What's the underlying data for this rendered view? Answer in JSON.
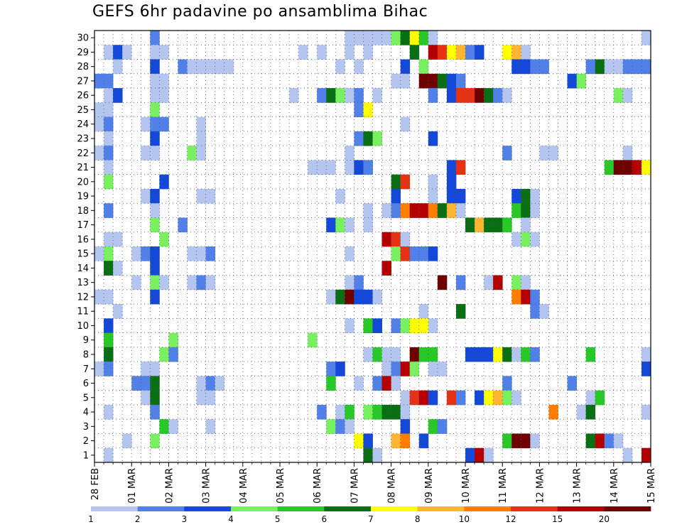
{
  "chart_data": {
    "type": "heatmap",
    "title": "GEFS 6hr padavine po ansamblima Bihac",
    "xlabel": "",
    "ylabel": "",
    "x_tick_labels": [
      "28 FEB",
      "01 MAR",
      "02 MAR",
      "03 MAR",
      "04 MAR",
      "05 MAR",
      "06 MAR",
      "07 MAR",
      "08 MAR",
      "09 MAR",
      "10 MAR",
      "11 MAR",
      "12 MAR",
      "13 MAR",
      "14 MAR",
      "15 MAR"
    ],
    "y_tick_labels": [
      "1",
      "2",
      "3",
      "4",
      "5",
      "6",
      "7",
      "8",
      "9",
      "10",
      "11",
      "12",
      "13",
      "14",
      "15",
      "16",
      "17",
      "18",
      "19",
      "20",
      "21",
      "22",
      "23",
      "24",
      "25",
      "26",
      "27",
      "28",
      "29",
      "30"
    ],
    "steps_per_day": 4,
    "n_steps": 60,
    "colorbar": {
      "levels": [
        "1",
        "2",
        "3",
        "4",
        "5",
        "6",
        "7",
        "8",
        "10",
        "12",
        "15",
        "20"
      ],
      "colors": [
        "#b4c6f0",
        "#5080e8",
        "#1448d8",
        "#78f060",
        "#28c828",
        "#0a6e14",
        "#ffff00",
        "#ffb432",
        "#ff7d00",
        "#e63214",
        "#b40000",
        "#6e0000"
      ]
    },
    "grid": true,
    "cells": [
      [
        30,
        6,
        2
      ],
      [
        30,
        27,
        1
      ],
      [
        30,
        28,
        1
      ],
      [
        30,
        29,
        1
      ],
      [
        30,
        30,
        1
      ],
      [
        30,
        31,
        1
      ],
      [
        30,
        32,
        4
      ],
      [
        30,
        33,
        6
      ],
      [
        30,
        34,
        7
      ],
      [
        30,
        35,
        5
      ],
      [
        30,
        36,
        1
      ],
      [
        30,
        59,
        1
      ],
      [
        29,
        1,
        1
      ],
      [
        29,
        2,
        3
      ],
      [
        29,
        3,
        1
      ],
      [
        29,
        6,
        1
      ],
      [
        29,
        7,
        1
      ],
      [
        29,
        22,
        1
      ],
      [
        29,
        24,
        1
      ],
      [
        29,
        27,
        1
      ],
      [
        29,
        29,
        1
      ],
      [
        29,
        34,
        6
      ],
      [
        29,
        36,
        11
      ],
      [
        29,
        37,
        10
      ],
      [
        29,
        38,
        7
      ],
      [
        29,
        39,
        8
      ],
      [
        29,
        40,
        2
      ],
      [
        29,
        41,
        3
      ],
      [
        29,
        44,
        7
      ],
      [
        29,
        45,
        8
      ],
      [
        29,
        46,
        1
      ],
      [
        28,
        2,
        1
      ],
      [
        28,
        6,
        3
      ],
      [
        28,
        9,
        2
      ],
      [
        28,
        10,
        1
      ],
      [
        28,
        11,
        1
      ],
      [
        28,
        12,
        1
      ],
      [
        28,
        13,
        1
      ],
      [
        28,
        14,
        1
      ],
      [
        28,
        26,
        1
      ],
      [
        28,
        28,
        1
      ],
      [
        28,
        33,
        3
      ],
      [
        28,
        35,
        4
      ],
      [
        28,
        45,
        3
      ],
      [
        28,
        46,
        3
      ],
      [
        28,
        47,
        2
      ],
      [
        28,
        48,
        2
      ],
      [
        28,
        53,
        2
      ],
      [
        28,
        54,
        6
      ],
      [
        28,
        55,
        1
      ],
      [
        28,
        56,
        1
      ],
      [
        28,
        57,
        2
      ],
      [
        28,
        58,
        2
      ],
      [
        28,
        59,
        2
      ],
      [
        27,
        0,
        2
      ],
      [
        27,
        1,
        2
      ],
      [
        27,
        6,
        1
      ],
      [
        27,
        7,
        1
      ],
      [
        27,
        32,
        1
      ],
      [
        27,
        33,
        1
      ],
      [
        27,
        35,
        12
      ],
      [
        27,
        36,
        12
      ],
      [
        27,
        37,
        6
      ],
      [
        27,
        38,
        3
      ],
      [
        27,
        39,
        2
      ],
      [
        27,
        51,
        3
      ],
      [
        27,
        52,
        4
      ],
      [
        26,
        1,
        1
      ],
      [
        26,
        2,
        3
      ],
      [
        26,
        6,
        1
      ],
      [
        26,
        7,
        1
      ],
      [
        26,
        21,
        1
      ],
      [
        26,
        24,
        2
      ],
      [
        26,
        25,
        6
      ],
      [
        26,
        26,
        4
      ],
      [
        26,
        27,
        1
      ],
      [
        26,
        28,
        2
      ],
      [
        26,
        30,
        1
      ],
      [
        26,
        36,
        2
      ],
      [
        26,
        38,
        3
      ],
      [
        26,
        39,
        10
      ],
      [
        26,
        40,
        10
      ],
      [
        26,
        41,
        12
      ],
      [
        26,
        42,
        6
      ],
      [
        26,
        43,
        2
      ],
      [
        26,
        44,
        1
      ],
      [
        26,
        56,
        4
      ],
      [
        26,
        57,
        1
      ],
      [
        25,
        0,
        1
      ],
      [
        25,
        1,
        1
      ],
      [
        25,
        6,
        4
      ],
      [
        25,
        28,
        2
      ],
      [
        25,
        29,
        7
      ],
      [
        24,
        0,
        1
      ],
      [
        24,
        1,
        2
      ],
      [
        24,
        5,
        1
      ],
      [
        24,
        6,
        2
      ],
      [
        24,
        7,
        2
      ],
      [
        24,
        11,
        1
      ],
      [
        24,
        33,
        1
      ],
      [
        23,
        1,
        1
      ],
      [
        23,
        6,
        3
      ],
      [
        23,
        11,
        1
      ],
      [
        23,
        28,
        2
      ],
      [
        23,
        29,
        6
      ],
      [
        23,
        30,
        4
      ],
      [
        23,
        36,
        3
      ],
      [
        22,
        0,
        1
      ],
      [
        22,
        1,
        2
      ],
      [
        22,
        5,
        1
      ],
      [
        22,
        6,
        1
      ],
      [
        22,
        10,
        4
      ],
      [
        22,
        11,
        1
      ],
      [
        22,
        27,
        1
      ],
      [
        22,
        44,
        2
      ],
      [
        22,
        48,
        1
      ],
      [
        22,
        49,
        1
      ],
      [
        22,
        57,
        1
      ],
      [
        21,
        1,
        1
      ],
      [
        21,
        23,
        1
      ],
      [
        21,
        24,
        1
      ],
      [
        21,
        25,
        1
      ],
      [
        21,
        27,
        1
      ],
      [
        21,
        28,
        3
      ],
      [
        21,
        29,
        2
      ],
      [
        21,
        38,
        3
      ],
      [
        21,
        39,
        10
      ],
      [
        21,
        55,
        5
      ],
      [
        21,
        56,
        12
      ],
      [
        21,
        57,
        12
      ],
      [
        21,
        58,
        11
      ],
      [
        21,
        59,
        7
      ],
      [
        20,
        1,
        4
      ],
      [
        20,
        7,
        3
      ],
      [
        20,
        32,
        6
      ],
      [
        20,
        33,
        10
      ],
      [
        20,
        36,
        1
      ],
      [
        20,
        38,
        3
      ],
      [
        19,
        5,
        1
      ],
      [
        19,
        6,
        3
      ],
      [
        19,
        11,
        1
      ],
      [
        19,
        12,
        1
      ],
      [
        19,
        26,
        1
      ],
      [
        19,
        32,
        3
      ],
      [
        19,
        36,
        1
      ],
      [
        19,
        38,
        3
      ],
      [
        19,
        39,
        3
      ],
      [
        19,
        45,
        3
      ],
      [
        19,
        46,
        6
      ],
      [
        19,
        47,
        1
      ],
      [
        18,
        1,
        2
      ],
      [
        18,
        6,
        1
      ],
      [
        18,
        29,
        1
      ],
      [
        18,
        31,
        1
      ],
      [
        18,
        32,
        2
      ],
      [
        18,
        33,
        9
      ],
      [
        18,
        34,
        11
      ],
      [
        18,
        35,
        11
      ],
      [
        18,
        36,
        9
      ],
      [
        18,
        37,
        6
      ],
      [
        18,
        38,
        8
      ],
      [
        18,
        39,
        1
      ],
      [
        18,
        45,
        5
      ],
      [
        18,
        46,
        6
      ],
      [
        18,
        47,
        1
      ],
      [
        17,
        6,
        4
      ],
      [
        17,
        9,
        2
      ],
      [
        17,
        25,
        3
      ],
      [
        17,
        26,
        4
      ],
      [
        17,
        27,
        1
      ],
      [
        17,
        29,
        1
      ],
      [
        17,
        40,
        6
      ],
      [
        17,
        41,
        8
      ],
      [
        17,
        42,
        6
      ],
      [
        17,
        43,
        6
      ],
      [
        17,
        44,
        5
      ],
      [
        17,
        46,
        1
      ],
      [
        16,
        1,
        1
      ],
      [
        16,
        2,
        1
      ],
      [
        16,
        7,
        4
      ],
      [
        16,
        31,
        11
      ],
      [
        16,
        32,
        10
      ],
      [
        16,
        33,
        1
      ],
      [
        16,
        45,
        1
      ],
      [
        16,
        46,
        4
      ],
      [
        16,
        47,
        1
      ],
      [
        15,
        0,
        1
      ],
      [
        15,
        1,
        4
      ],
      [
        15,
        4,
        1
      ],
      [
        15,
        5,
        2
      ],
      [
        15,
        6,
        3
      ],
      [
        15,
        10,
        1
      ],
      [
        15,
        11,
        1
      ],
      [
        15,
        12,
        2
      ],
      [
        15,
        27,
        1
      ],
      [
        15,
        32,
        4
      ],
      [
        15,
        33,
        10
      ],
      [
        15,
        34,
        2
      ],
      [
        15,
        35,
        2
      ],
      [
        15,
        36,
        3
      ],
      [
        14,
        1,
        6
      ],
      [
        14,
        2,
        1
      ],
      [
        14,
        6,
        3
      ],
      [
        14,
        31,
        11
      ],
      [
        13,
        4,
        1
      ],
      [
        13,
        6,
        4
      ],
      [
        13,
        7,
        1
      ],
      [
        13,
        10,
        1
      ],
      [
        13,
        11,
        2
      ],
      [
        13,
        12,
        1
      ],
      [
        13,
        27,
        1
      ],
      [
        13,
        28,
        2
      ],
      [
        13,
        37,
        12
      ],
      [
        13,
        39,
        2
      ],
      [
        13,
        42,
        1
      ],
      [
        13,
        43,
        11
      ],
      [
        13,
        45,
        4
      ],
      [
        13,
        46,
        1
      ],
      [
        12,
        0,
        1
      ],
      [
        12,
        1,
        1
      ],
      [
        12,
        6,
        3
      ],
      [
        12,
        25,
        1
      ],
      [
        12,
        26,
        6
      ],
      [
        12,
        27,
        12
      ],
      [
        12,
        28,
        3
      ],
      [
        12,
        29,
        3
      ],
      [
        12,
        30,
        1
      ],
      [
        12,
        45,
        9
      ],
      [
        12,
        46,
        11
      ],
      [
        12,
        47,
        2
      ],
      [
        11,
        2,
        1
      ],
      [
        11,
        35,
        1
      ],
      [
        11,
        39,
        6
      ],
      [
        11,
        47,
        2
      ],
      [
        11,
        48,
        1
      ],
      [
        10,
        1,
        3
      ],
      [
        10,
        27,
        1
      ],
      [
        10,
        29,
        5
      ],
      [
        10,
        30,
        3
      ],
      [
        10,
        32,
        2
      ],
      [
        10,
        33,
        4
      ],
      [
        10,
        34,
        7
      ],
      [
        10,
        35,
        7
      ],
      [
        10,
        36,
        1
      ],
      [
        9,
        1,
        5
      ],
      [
        9,
        8,
        4
      ],
      [
        9,
        23,
        4
      ],
      [
        8,
        1,
        6
      ],
      [
        8,
        7,
        4
      ],
      [
        8,
        8,
        2
      ],
      [
        8,
        29,
        1
      ],
      [
        8,
        30,
        5
      ],
      [
        8,
        31,
        1
      ],
      [
        8,
        32,
        1
      ],
      [
        8,
        34,
        12
      ],
      [
        8,
        35,
        5
      ],
      [
        8,
        36,
        5
      ],
      [
        8,
        40,
        3
      ],
      [
        8,
        41,
        3
      ],
      [
        8,
        42,
        3
      ],
      [
        8,
        43,
        7
      ],
      [
        8,
        44,
        6
      ],
      [
        8,
        45,
        1
      ],
      [
        8,
        46,
        5
      ],
      [
        8,
        47,
        2
      ],
      [
        8,
        53,
        5
      ],
      [
        8,
        59,
        1
      ],
      [
        7,
        0,
        1
      ],
      [
        7,
        1,
        2
      ],
      [
        7,
        5,
        1
      ],
      [
        7,
        6,
        1
      ],
      [
        7,
        25,
        2
      ],
      [
        7,
        26,
        3
      ],
      [
        7,
        31,
        1
      ],
      [
        7,
        32,
        2
      ],
      [
        7,
        33,
        11
      ],
      [
        7,
        34,
        4
      ],
      [
        7,
        36,
        1
      ],
      [
        7,
        37,
        1
      ],
      [
        7,
        59,
        3
      ],
      [
        6,
        4,
        2
      ],
      [
        6,
        5,
        2
      ],
      [
        6,
        6,
        6
      ],
      [
        6,
        11,
        1
      ],
      [
        6,
        12,
        2
      ],
      [
        6,
        13,
        1
      ],
      [
        6,
        25,
        5
      ],
      [
        6,
        28,
        1
      ],
      [
        6,
        30,
        2
      ],
      [
        6,
        31,
        11
      ],
      [
        6,
        32,
        1
      ],
      [
        6,
        44,
        2
      ],
      [
        6,
        51,
        2
      ],
      [
        5,
        5,
        1
      ],
      [
        5,
        6,
        6
      ],
      [
        5,
        11,
        1
      ],
      [
        5,
        12,
        1
      ],
      [
        5,
        33,
        1
      ],
      [
        5,
        34,
        10
      ],
      [
        5,
        35,
        11
      ],
      [
        5,
        36,
        3
      ],
      [
        5,
        38,
        10
      ],
      [
        5,
        39,
        2
      ],
      [
        5,
        41,
        3
      ],
      [
        5,
        42,
        7
      ],
      [
        5,
        43,
        8
      ],
      [
        5,
        44,
        4
      ],
      [
        5,
        45,
        1
      ],
      [
        5,
        53,
        1
      ],
      [
        5,
        54,
        5
      ],
      [
        4,
        1,
        1
      ],
      [
        4,
        6,
        2
      ],
      [
        4,
        24,
        2
      ],
      [
        4,
        26,
        1
      ],
      [
        4,
        27,
        5
      ],
      [
        4,
        29,
        4
      ],
      [
        4,
        30,
        5
      ],
      [
        4,
        31,
        6
      ],
      [
        4,
        32,
        6
      ],
      [
        4,
        33,
        1
      ],
      [
        4,
        49,
        9
      ],
      [
        4,
        52,
        1
      ],
      [
        4,
        53,
        6
      ],
      [
        4,
        59,
        1
      ],
      [
        3,
        7,
        5
      ],
      [
        3,
        8,
        1
      ],
      [
        3,
        12,
        1
      ],
      [
        3,
        25,
        4
      ],
      [
        3,
        26,
        2
      ],
      [
        3,
        27,
        1
      ],
      [
        3,
        33,
        3
      ],
      [
        3,
        36,
        5
      ],
      [
        3,
        37,
        2
      ],
      [
        2,
        3,
        1
      ],
      [
        2,
        6,
        4
      ],
      [
        2,
        28,
        7
      ],
      [
        2,
        29,
        3
      ],
      [
        2,
        32,
        8
      ],
      [
        2,
        33,
        9
      ],
      [
        2,
        35,
        3
      ],
      [
        2,
        44,
        5
      ],
      [
        2,
        45,
        12
      ],
      [
        2,
        46,
        12
      ],
      [
        2,
        47,
        1
      ],
      [
        2,
        53,
        6
      ],
      [
        2,
        54,
        11
      ],
      [
        2,
        55,
        2
      ],
      [
        2,
        56,
        1
      ],
      [
        1,
        1,
        1
      ],
      [
        1,
        29,
        6
      ],
      [
        1,
        30,
        1
      ],
      [
        1,
        40,
        3
      ],
      [
        1,
        41,
        11
      ],
      [
        1,
        42,
        1
      ],
      [
        1,
        57,
        1
      ],
      [
        1,
        59,
        11
      ]
    ]
  }
}
